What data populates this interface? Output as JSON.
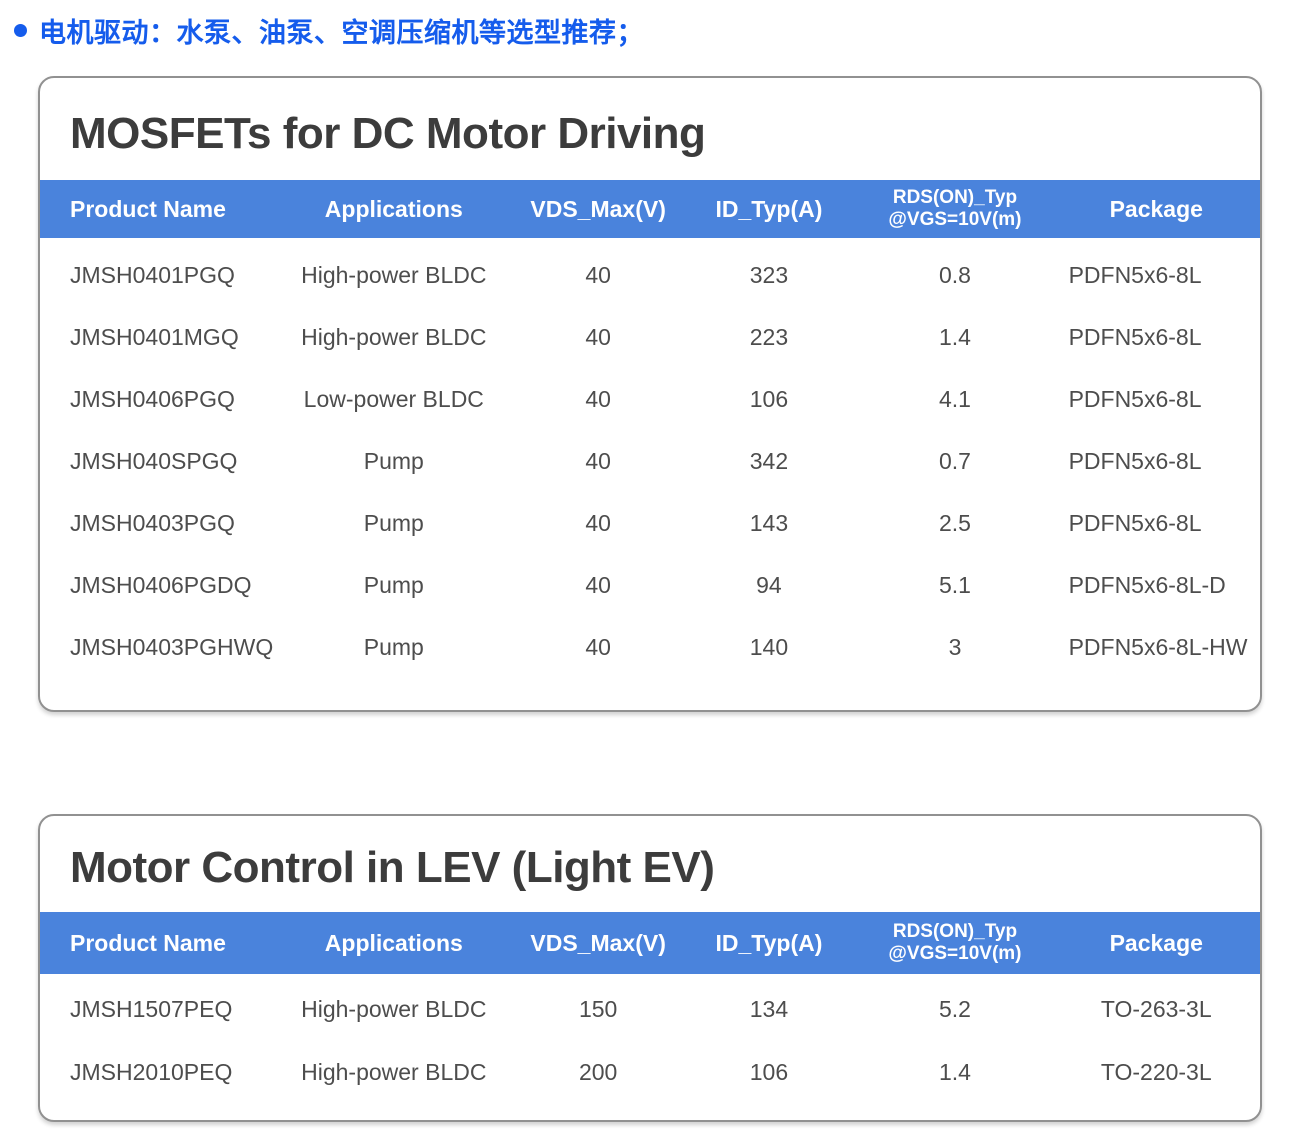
{
  "page": {
    "bullet_text": "电机驱动：水泵、油泵、空调压缩机等选型推荐；"
  },
  "colors": {
    "accent_blue": "#155CEC",
    "header_blue": "#4A83DC"
  },
  "tables": [
    {
      "title": "MOSFETs for DC Motor Driving",
      "columns": [
        {
          "key": "product_name",
          "label": "Product Name"
        },
        {
          "key": "applications",
          "label": "Applications"
        },
        {
          "key": "vds_max",
          "label": "VDS_Max(V)"
        },
        {
          "key": "id_typ",
          "label": "ID_Typ(A)"
        },
        {
          "key": "rds_on",
          "label": "RDS(ON)_Typ\n@VGS=10V(m)"
        },
        {
          "key": "package",
          "label": "Package"
        }
      ],
      "rows": [
        {
          "product_name": "JMSH0401PGQ",
          "applications": "High-power BLDC",
          "vds_max": "40",
          "id_typ": "323",
          "rds_on": "0.8",
          "package": "PDFN5x6-8L"
        },
        {
          "product_name": "JMSH0401MGQ",
          "applications": "High-power BLDC",
          "vds_max": "40",
          "id_typ": "223",
          "rds_on": "1.4",
          "package": "PDFN5x6-8L"
        },
        {
          "product_name": "JMSH0406PGQ",
          "applications": "Low-power BLDC",
          "vds_max": "40",
          "id_typ": "106",
          "rds_on": "4.1",
          "package": "PDFN5x6-8L"
        },
        {
          "product_name": "JMSH040SPGQ",
          "applications": "Pump",
          "vds_max": "40",
          "id_typ": "342",
          "rds_on": "0.7",
          "package": "PDFN5x6-8L"
        },
        {
          "product_name": "JMSH0403PGQ",
          "applications": "Pump",
          "vds_max": "40",
          "id_typ": "143",
          "rds_on": "2.5",
          "package": "PDFN5x6-8L"
        },
        {
          "product_name": "JMSH0406PGDQ",
          "applications": "Pump",
          "vds_max": "40",
          "id_typ": "94",
          "rds_on": "5.1",
          "package": "PDFN5x6-8L-D"
        },
        {
          "product_name": "JMSH0403PGHWQ",
          "applications": "Pump",
          "vds_max": "40",
          "id_typ": "140",
          "rds_on": "3",
          "package": "PDFN5x6-8L-HW"
        }
      ]
    },
    {
      "title": "Motor Control in LEV (Light EV)",
      "columns": [
        {
          "key": "product_name",
          "label": "Product Name"
        },
        {
          "key": "applications",
          "label": "Applications"
        },
        {
          "key": "vds_max",
          "label": "VDS_Max(V)"
        },
        {
          "key": "id_typ",
          "label": "ID_Typ(A)"
        },
        {
          "key": "rds_on",
          "label": "RDS(ON)_Typ\n@VGS=10V(m)"
        },
        {
          "key": "package",
          "label": "Package"
        }
      ],
      "rows": [
        {
          "product_name": "JMSH1507PEQ",
          "applications": "High-power BLDC",
          "vds_max": "150",
          "id_typ": "134",
          "rds_on": "5.2",
          "package": "TO-263-3L"
        },
        {
          "product_name": "JMSH2010PEQ",
          "applications": "High-power BLDC",
          "vds_max": "200",
          "id_typ": "106",
          "rds_on": "1.4",
          "package": "TO-220-3L"
        }
      ]
    }
  ]
}
